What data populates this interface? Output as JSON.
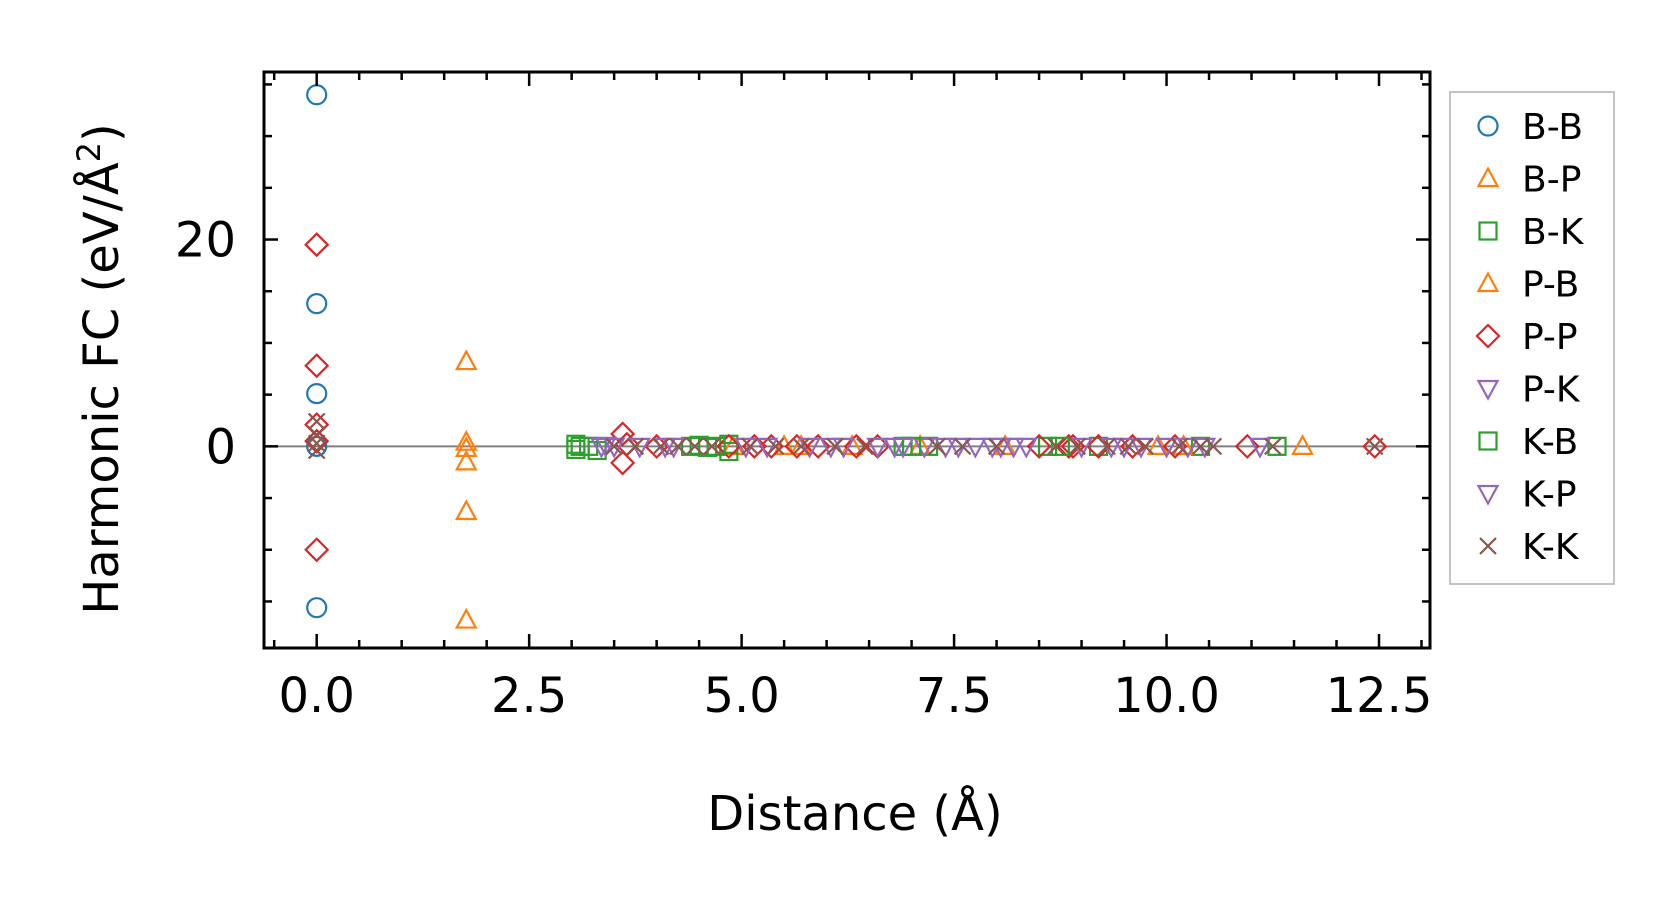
{
  "chart_data": {
    "type": "scatter",
    "title": "",
    "xlabel": "Distance (Å)",
    "ylabel_main": "Harmonic FC (eV/Å",
    "ylabel_sup": "2",
    "ylabel_close": ")",
    "xlim": [
      -0.62,
      13.1
    ],
    "ylim": [
      -19.5,
      36.2
    ],
    "xticks": [
      0.0,
      2.5,
      5.0,
      7.5,
      10.0,
      12.5
    ],
    "xtick_labels": [
      "0.0",
      "2.5",
      "5.0",
      "7.5",
      "10.0",
      "12.5"
    ],
    "yticks": [
      0,
      20
    ],
    "ytick_labels": [
      "0",
      "20"
    ],
    "reference_line_y": 0,
    "grid": false,
    "legend_position": "outside-right",
    "series": [
      {
        "name": "B-B",
        "marker": "circle",
        "color": "#1f77b4",
        "points": [
          [
            0,
            34
          ],
          [
            0,
            13.8
          ],
          [
            0,
            5.1
          ],
          [
            0,
            0
          ],
          [
            0,
            -15.6
          ]
        ]
      },
      {
        "name": "B-P",
        "marker": "triangle-up",
        "color": "#ff7f0e",
        "points": [
          [
            1.76,
            8.2
          ],
          [
            1.76,
            0.4
          ],
          [
            1.76,
            -0.2
          ],
          [
            1.76,
            -1.5
          ],
          [
            1.76,
            -6.3
          ],
          [
            1.76,
            -16.8
          ],
          [
            4.9,
            0
          ],
          [
            5.5,
            0
          ],
          [
            7.1,
            0
          ],
          [
            9.9,
            0
          ],
          [
            11.6,
            0
          ]
        ]
      },
      {
        "name": "B-K",
        "marker": "square",
        "color": "#2ca02c",
        "points": [
          [
            3.05,
            0.2
          ],
          [
            3.05,
            -0.3
          ],
          [
            3.2,
            0
          ],
          [
            3.3,
            -0.4
          ],
          [
            4.4,
            0
          ],
          [
            4.5,
            0.1
          ],
          [
            4.6,
            -0.1
          ],
          [
            4.85,
            0.2
          ],
          [
            4.85,
            -0.5
          ],
          [
            6.9,
            0
          ],
          [
            7.2,
            0
          ],
          [
            8.6,
            0
          ],
          [
            9.2,
            0
          ],
          [
            10.4,
            0
          ],
          [
            11.3,
            0
          ]
        ]
      },
      {
        "name": "P-B",
        "marker": "triangle-up",
        "color": "#ff7f0e",
        "points": [
          [
            5.7,
            0
          ],
          [
            6.3,
            0
          ],
          [
            8.1,
            0
          ],
          [
            10.2,
            0
          ]
        ]
      },
      {
        "name": "P-P",
        "marker": "diamond",
        "color": "#d62728",
        "points": [
          [
            0,
            19.5
          ],
          [
            0,
            7.8
          ],
          [
            0,
            2.1
          ],
          [
            0,
            0.5
          ],
          [
            0,
            -10
          ],
          [
            3.6,
            1.2
          ],
          [
            3.6,
            -1.6
          ],
          [
            3.65,
            0.2
          ],
          [
            4.0,
            0
          ],
          [
            4.85,
            0
          ],
          [
            5.15,
            0
          ],
          [
            5.35,
            0
          ],
          [
            5.65,
            0
          ],
          [
            5.9,
            0
          ],
          [
            6.35,
            0
          ],
          [
            6.6,
            0
          ],
          [
            8.5,
            0
          ],
          [
            8.85,
            0
          ],
          [
            8.9,
            0
          ],
          [
            9.2,
            0
          ],
          [
            9.6,
            0
          ],
          [
            10.1,
            0
          ],
          [
            10.95,
            0
          ],
          [
            12.45,
            0
          ]
        ]
      },
      {
        "name": "P-K",
        "marker": "triangle-down",
        "color": "#9467bd",
        "points": [
          [
            3.35,
            0
          ],
          [
            3.5,
            0
          ],
          [
            3.8,
            0
          ],
          [
            4.2,
            0
          ],
          [
            5.05,
            0
          ],
          [
            5.8,
            0
          ],
          [
            6.2,
            0
          ],
          [
            6.6,
            0
          ],
          [
            6.8,
            0
          ],
          [
            7.15,
            0
          ],
          [
            7.4,
            0
          ],
          [
            7.75,
            0
          ],
          [
            7.95,
            0
          ],
          [
            8.2,
            0
          ],
          [
            8.35,
            0
          ],
          [
            9.0,
            0
          ],
          [
            9.35,
            0
          ],
          [
            9.7,
            0
          ],
          [
            10.0,
            0
          ],
          [
            10.25,
            0
          ],
          [
            11.1,
            0
          ]
        ]
      },
      {
        "name": "K-B",
        "marker": "square",
        "color": "#2ca02c",
        "points": [
          [
            3.1,
            0
          ],
          [
            4.7,
            0
          ],
          [
            7.0,
            0
          ],
          [
            8.75,
            0
          ]
        ]
      },
      {
        "name": "K-P",
        "marker": "triangle-down",
        "color": "#9467bd",
        "points": [
          [
            3.4,
            0.1
          ],
          [
            4.1,
            0
          ],
          [
            5.3,
            0
          ],
          [
            6.05,
            0
          ],
          [
            6.9,
            0
          ],
          [
            7.55,
            0
          ],
          [
            8.05,
            0
          ],
          [
            9.5,
            0
          ],
          [
            10.45,
            0
          ]
        ]
      },
      {
        "name": "K-K",
        "marker": "x",
        "color": "#8c564b",
        "points": [
          [
            0,
            2.4
          ],
          [
            0,
            1.1
          ],
          [
            0,
            0.3
          ],
          [
            0,
            -0.4
          ],
          [
            3.5,
            0
          ],
          [
            3.75,
            0
          ],
          [
            4.05,
            0
          ],
          [
            4.25,
            0
          ],
          [
            4.45,
            0
          ],
          [
            4.65,
            0
          ],
          [
            5.1,
            0
          ],
          [
            5.4,
            0
          ],
          [
            5.7,
            0
          ],
          [
            6.1,
            0
          ],
          [
            6.45,
            0
          ],
          [
            7.3,
            0
          ],
          [
            7.6,
            0
          ],
          [
            8.0,
            0
          ],
          [
            8.7,
            0
          ],
          [
            8.95,
            0
          ],
          [
            9.3,
            0
          ],
          [
            9.55,
            0
          ],
          [
            9.75,
            0
          ],
          [
            10.15,
            0
          ],
          [
            10.4,
            0
          ],
          [
            10.55,
            0
          ],
          [
            11.25,
            0
          ],
          [
            12.45,
            0
          ]
        ]
      }
    ]
  }
}
